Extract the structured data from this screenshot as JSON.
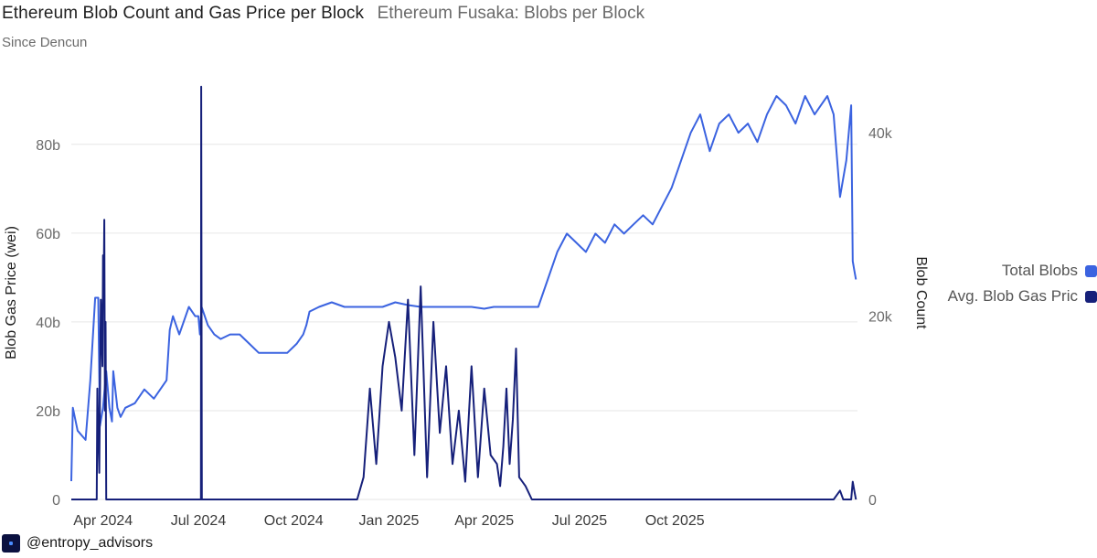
{
  "header": {
    "title": "Ethereum Blob Count and Gas Price per Block",
    "subtitle": "Ethereum Fusaka: Blobs per Block",
    "since": "Since Dencun"
  },
  "footer": {
    "handle": "@entropy_advisors"
  },
  "colors": {
    "total_blobs": "#3b63e0",
    "gas_price": "#16207a",
    "grid": "#e6e6e6",
    "axis_text": "#6b6b6b"
  },
  "chart_data": {
    "type": "line",
    "title": "Ethereum Blob Count and Gas Price per Block",
    "xlabel": "",
    "ylabel_left": "Blob Gas Price (wei)",
    "ylabel_right": "Blob Count",
    "ylim_left": [
      0,
      95
    ],
    "ylim_right": [
      0,
      46
    ],
    "left_ticks": [
      {
        "v": 0,
        "label": "0"
      },
      {
        "v": 20,
        "label": "20b"
      },
      {
        "v": 40,
        "label": "40b"
      },
      {
        "v": 60,
        "label": "60b"
      },
      {
        "v": 80,
        "label": "80b"
      }
    ],
    "right_ticks": [
      {
        "v": 0,
        "label": "0"
      },
      {
        "v": 20,
        "label": "20k"
      },
      {
        "v": 40,
        "label": "40k"
      }
    ],
    "x_domain": [
      0,
      24.75
    ],
    "x_ticks": [
      {
        "x": 1,
        "label": "Apr 2024"
      },
      {
        "x": 4,
        "label": "Jul 2024"
      },
      {
        "x": 7,
        "label": "Oct 2024"
      },
      {
        "x": 10,
        "label": "Jan 2025"
      },
      {
        "x": 13,
        "label": "Apr 2025"
      },
      {
        "x": 16,
        "label": "Jul 2025"
      },
      {
        "x": 19,
        "label": "Oct 2025"
      }
    ],
    "series": [
      {
        "name": "Total Blobs",
        "axis": "right",
        "unit": "thousands",
        "x": [
          0,
          0.05,
          0.2,
          0.45,
          0.6,
          0.75,
          0.85,
          0.9,
          1.0,
          1.1,
          1.2,
          1.28,
          1.32,
          1.45,
          1.55,
          1.7,
          2.0,
          2.3,
          2.6,
          2.8,
          3.0,
          3.1,
          3.2,
          3.4,
          3.7,
          3.9,
          4.0,
          4.05,
          4.1,
          4.3,
          4.5,
          4.7,
          5.0,
          5.3,
          5.6,
          5.9,
          6.2,
          6.5,
          6.8,
          7.1,
          7.3,
          7.4,
          7.5,
          7.8,
          8.2,
          8.6,
          9.0,
          9.4,
          9.8,
          10.2,
          10.6,
          11.0,
          11.4,
          11.8,
          12.2,
          12.6,
          13.0,
          13.3,
          13.6,
          13.8,
          14.0,
          14.2,
          14.4,
          14.7,
          15.0,
          15.3,
          15.6,
          15.9,
          16.2,
          16.5,
          16.8,
          17.1,
          17.4,
          17.7,
          18.0,
          18.3,
          18.6,
          18.9,
          19.1,
          19.3,
          19.5,
          19.8,
          20.1,
          20.4,
          20.7,
          21.0,
          21.3,
          21.6,
          21.9,
          22.2,
          22.5,
          22.8,
          23.1,
          23.4,
          23.6,
          23.8,
          24.0,
          24.2,
          24.4,
          24.55,
          24.6,
          24.65,
          24.7
        ],
        "values": [
          2,
          10,
          7.5,
          6.5,
          13,
          22,
          22,
          8,
          10,
          14,
          10,
          8.5,
          14,
          10,
          9,
          10,
          10.5,
          12,
          11,
          12,
          13,
          18.5,
          20,
          18,
          21,
          20,
          20,
          18,
          21,
          19,
          18,
          17.5,
          18,
          18,
          17,
          16,
          16,
          16,
          16,
          17,
          18,
          19,
          20.5,
          21,
          21.5,
          21,
          21,
          21,
          21,
          21.5,
          21.2,
          21,
          21,
          21,
          21,
          21,
          20.8,
          21,
          21,
          21,
          21,
          21,
          21,
          21,
          24,
          27,
          29,
          28,
          27,
          29,
          28,
          30,
          29,
          30,
          31,
          30,
          32,
          34,
          36,
          38,
          40,
          42,
          38,
          41,
          42,
          40,
          41,
          39,
          42,
          44,
          43,
          41,
          44,
          42,
          43,
          44,
          42,
          33,
          37,
          43,
          26,
          25,
          24
        ],
        "color": "#3b63e0"
      },
      {
        "name": "Avg. Blob Gas Price",
        "axis": "left",
        "unit": "billion wei",
        "x": [
          0,
          0.8,
          0.82,
          0.88,
          0.93,
          0.98,
          1.0,
          1.02,
          1.04,
          1.06,
          1.08,
          1.1,
          1.14,
          1.2,
          4.06,
          4.08,
          4.09,
          4.11,
          4.15,
          4.2,
          9.0,
          9.2,
          9.4,
          9.6,
          9.8,
          10.0,
          10.2,
          10.4,
          10.6,
          10.8,
          11.0,
          11.2,
          11.4,
          11.6,
          11.8,
          12.0,
          12.2,
          12.4,
          12.6,
          12.8,
          13.0,
          13.2,
          13.4,
          13.5,
          13.6,
          13.7,
          13.8,
          13.9,
          14.0,
          14.1,
          14.3,
          14.5,
          15.0,
          16.0,
          19.0,
          24.0,
          24.2,
          24.3,
          24.55,
          24.6,
          24.65,
          24.7
        ],
        "values": [
          0,
          0,
          25,
          6,
          45,
          30,
          55,
          48,
          63,
          20,
          40,
          0,
          0,
          0,
          0,
          0,
          93,
          0,
          0,
          0,
          0,
          5,
          25,
          8,
          30,
          40,
          32,
          20,
          45,
          10,
          48,
          5,
          40,
          15,
          30,
          8,
          20,
          4,
          30,
          5,
          25,
          10,
          8,
          3,
          12,
          25,
          8,
          18,
          34,
          5,
          3,
          0,
          0,
          0,
          0,
          0,
          2,
          0,
          0,
          4,
          2,
          0
        ],
        "color": "#16207a"
      }
    ],
    "legend": [
      "Total Blobs",
      "Avg. Blob Gas Pric"
    ],
    "legend_position": "right"
  }
}
